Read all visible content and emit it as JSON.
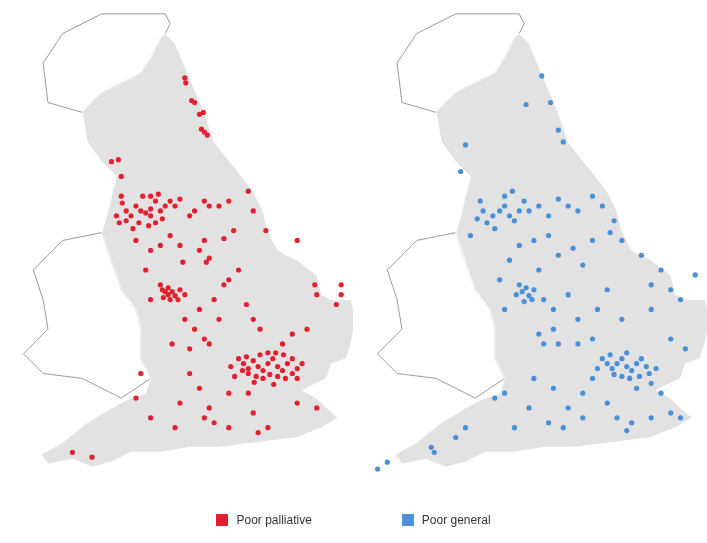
{
  "chart_data": [
    {
      "type": "scatter",
      "xlim": [
        0,
        353
      ],
      "ylim": [
        543,
        0
      ],
      "tick_labels": false,
      "grid": false,
      "legend": "bottom",
      "series": [
        {
          "name": "Poor palliative",
          "color": "#e3202f",
          "marker": "circle",
          "x": [
            185,
            186,
            192,
            204,
            200,
            205,
            208,
            202,
            195,
            117,
            110,
            120,
            120,
            121,
            125,
            115,
            118,
            125,
            130,
            135,
            140,
            145,
            150,
            150,
            155,
            160,
            162,
            155,
            148,
            138,
            132,
            165,
            170,
            175,
            180,
            142,
            150,
            158,
            190,
            195,
            205,
            210,
            220,
            230,
            250,
            255,
            235,
            225,
            205,
            200,
            210,
            207,
            180,
            183,
            170,
            160,
            150,
            145,
            135,
            160,
            162,
            165,
            168,
            172,
            175,
            170,
            178,
            180,
            185,
            163,
            168,
            150,
            185,
            195,
            200,
            215,
            225,
            230,
            240,
            220,
            205,
            248,
            255,
            262,
            210,
            190,
            268,
            300,
            318,
            320,
            345,
            345,
            340,
            295,
            285,
            310,
            240,
            245,
            250,
            255,
            260,
            265,
            270,
            275,
            280,
            285,
            290,
            295,
            250,
            258,
            265,
            272,
            280,
            288,
            295,
            300,
            248,
            262,
            270,
            278,
            286,
            244,
            256,
            276,
            300,
            305,
            232,
            236,
            230,
            210,
            200,
            190,
            172,
            180,
            205,
            215,
            230,
            255,
            260,
            270,
            320,
            300,
            250,
            150,
            175,
            70,
            90,
            140,
            135
          ],
          "values": [
            75,
            80,
            98,
            110,
            112,
            130,
            133,
            127,
            100,
            158,
            160,
            175,
            195,
            202,
            210,
            215,
            222,
            220,
            215,
            205,
            210,
            212,
            208,
            215,
            200,
            210,
            218,
            222,
            225,
            222,
            228,
            205,
            200,
            205,
            198,
            195,
            195,
            193,
            215,
            210,
            200,
            205,
            205,
            200,
            190,
            210,
            230,
            238,
            240,
            250,
            258,
            262,
            245,
            262,
            235,
            245,
            250,
            270,
            240,
            285,
            290,
            292,
            295,
            292,
            296,
            300,
            300,
            290,
            295,
            298,
            288,
            300,
            320,
            330,
            310,
            300,
            285,
            280,
            270,
            320,
            340,
            305,
            320,
            330,
            345,
            350,
            230,
            240,
            285,
            295,
            285,
            295,
            305,
            335,
            345,
            330,
            360,
            365,
            370,
            362,
            368,
            372,
            365,
            360,
            368,
            372,
            365,
            360,
            375,
            378,
            380,
            376,
            378,
            380,
            375,
            370,
            358,
            356,
            354,
            354,
            356,
            372,
            384,
            386,
            380,
            365,
            368,
            378,
            395,
            410,
            390,
            375,
            345,
            405,
            420,
            425,
            430,
            415,
            435,
            430,
            410,
            405,
            395,
            420,
            430,
            455,
            460,
            375,
            400
          ]
        }
      ]
    },
    {
      "type": "scatter",
      "xlim": [
        0,
        353
      ],
      "ylim": [
        543,
        0
      ],
      "tick_labels": false,
      "grid": false,
      "legend": "bottom",
      "series": [
        {
          "name": "Poor general",
          "color": "#4a90d9",
          "marker": "circle",
          "x": [
            188,
            197,
            205,
            172,
            210,
            110,
            105,
            125,
            128,
            122,
            132,
            138,
            145,
            150,
            155,
            140,
            160,
            165,
            170,
            150,
            158,
            175,
            185,
            195,
            205,
            215,
            225,
            240,
            250,
            258,
            262,
            240,
            220,
            205,
            195,
            180,
            165,
            185,
            230,
            270,
            290,
            310,
            300,
            320,
            330,
            345,
            155,
            145,
            115,
            165,
            168,
            172,
            175,
            178,
            170,
            162,
            180,
            190,
            200,
            215,
            225,
            245,
            255,
            200,
            185,
            150,
            205,
            190,
            225,
            240,
            270,
            300,
            320,
            335,
            250,
            255,
            260,
            265,
            270,
            275,
            280,
            285,
            290,
            295,
            262,
            270,
            278,
            288,
            298,
            245,
            258,
            275,
            305,
            300,
            240,
            285,
            310,
            230,
            215,
            200,
            180,
            175,
            195,
            210,
            230,
            255,
            265,
            280,
            275,
            300,
            320,
            330,
            150,
            160,
            140,
            75,
            78,
            30,
            20,
            100,
            110
          ],
          "values": [
            73,
            100,
            128,
            102,
            140,
            143,
            170,
            200,
            210,
            218,
            222,
            215,
            210,
            205,
            215,
            228,
            220,
            210,
            200,
            195,
            190,
            210,
            205,
            215,
            198,
            205,
            210,
            195,
            205,
            232,
            220,
            240,
            248,
            255,
            235,
            240,
            245,
            270,
            265,
            240,
            255,
            270,
            285,
            290,
            300,
            275,
            260,
            280,
            235,
            285,
            292,
            288,
            296,
            300,
            302,
            295,
            290,
            300,
            310,
            295,
            320,
            310,
            290,
            330,
            335,
            310,
            345,
            345,
            345,
            340,
            320,
            310,
            340,
            350,
            360,
            365,
            370,
            365,
            360,
            368,
            372,
            365,
            360,
            368,
            376,
            378,
            380,
            378,
            375,
            370,
            356,
            354,
            370,
            385,
            380,
            390,
            395,
            395,
            410,
            390,
            380,
            410,
            425,
            430,
            420,
            405,
            420,
            425,
            433,
            420,
            415,
            420,
            395,
            430,
            400,
            450,
            455,
            465,
            472,
            440,
            430
          ]
        }
      ]
    }
  ]
}
